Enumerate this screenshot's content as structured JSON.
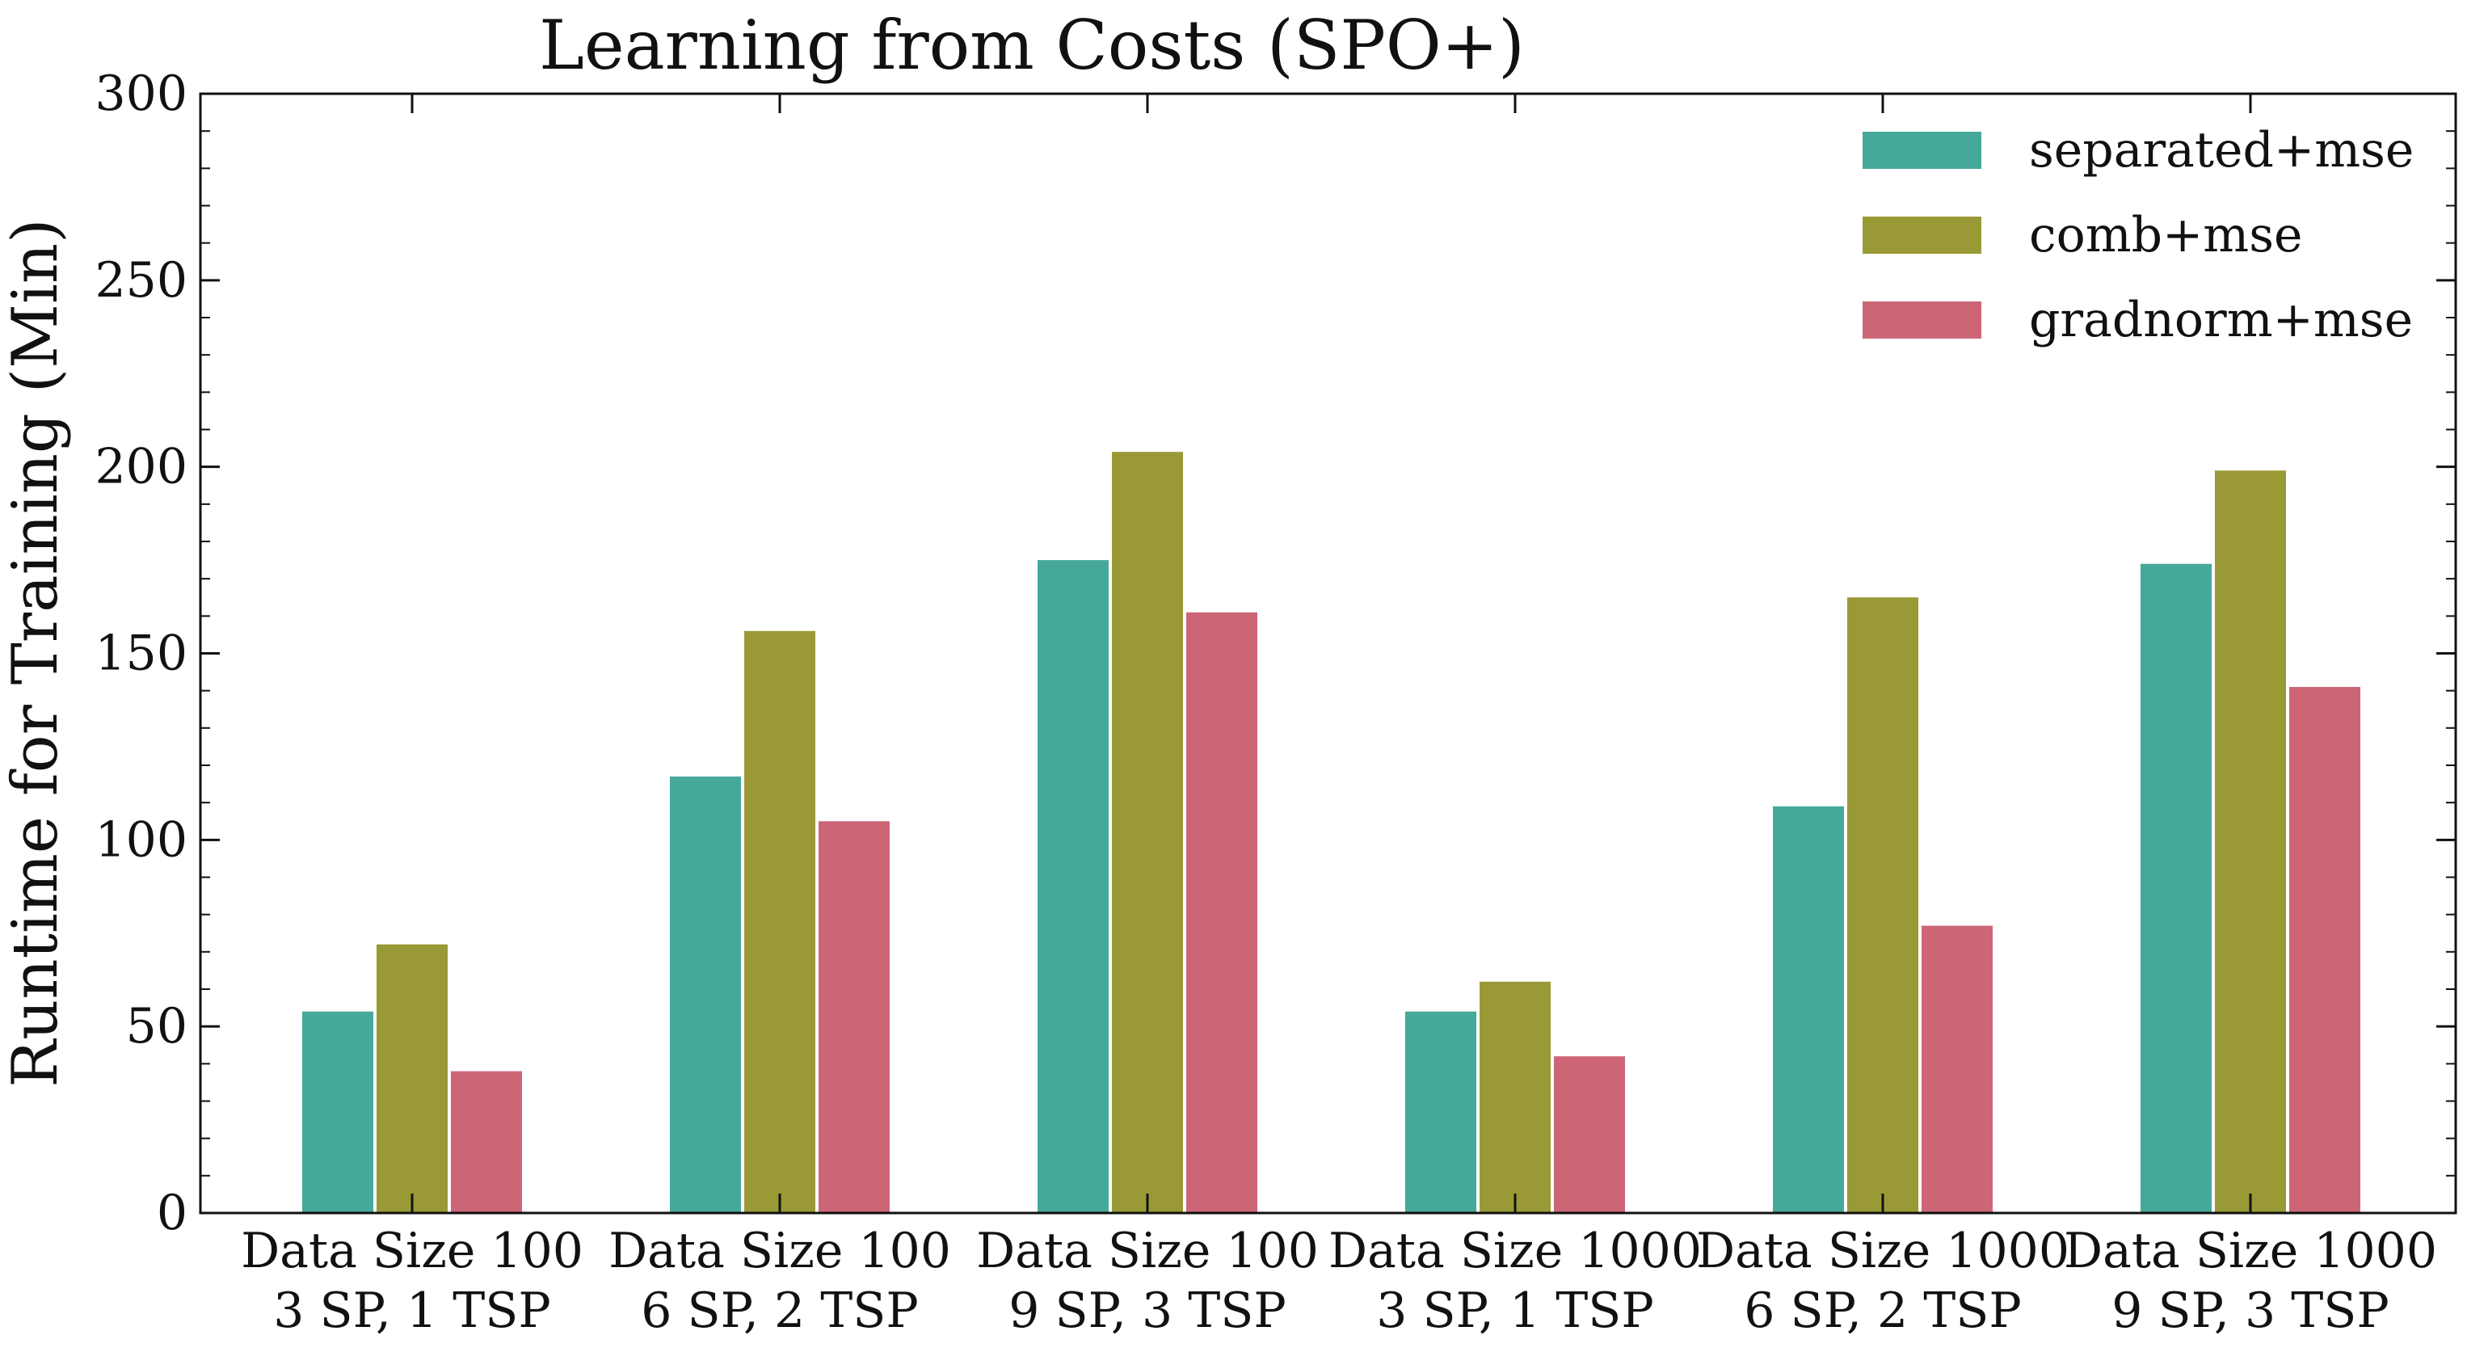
{
  "chart_data": {
    "type": "bar",
    "title": "Learning from Costs (SPO+)",
    "xlabel": "",
    "ylabel": "Runtime for Training (Min)",
    "ylim": [
      0,
      300
    ],
    "yticks": [
      "0",
      "50",
      "100",
      "150",
      "200",
      "250",
      "300"
    ],
    "grid": false,
    "legend_position": "top-right",
    "categories": [
      [
        "Data Size 100",
        "3 SP, 1 TSP"
      ],
      [
        "Data Size 100",
        "6 SP, 2 TSP"
      ],
      [
        "Data Size 100",
        "9 SP, 3 TSP"
      ],
      [
        "Data Size 1000",
        "3 SP, 1 TSP"
      ],
      [
        "Data Size 1000",
        "6 SP, 2 TSP"
      ],
      [
        "Data Size 1000",
        "9 SP, 3 TSP"
      ]
    ],
    "series": [
      {
        "name": "separated+mse",
        "color": "#45a99a",
        "values": [
          54,
          117,
          175,
          54,
          109,
          174
        ]
      },
      {
        "name": "comb+mse",
        "color": "#999a35",
        "values": [
          72,
          156,
          204,
          62,
          165,
          199
        ]
      },
      {
        "name": "gradnorm+mse",
        "color": "#cc6677",
        "values": [
          38,
          105,
          161,
          42,
          77,
          141
        ]
      }
    ]
  }
}
